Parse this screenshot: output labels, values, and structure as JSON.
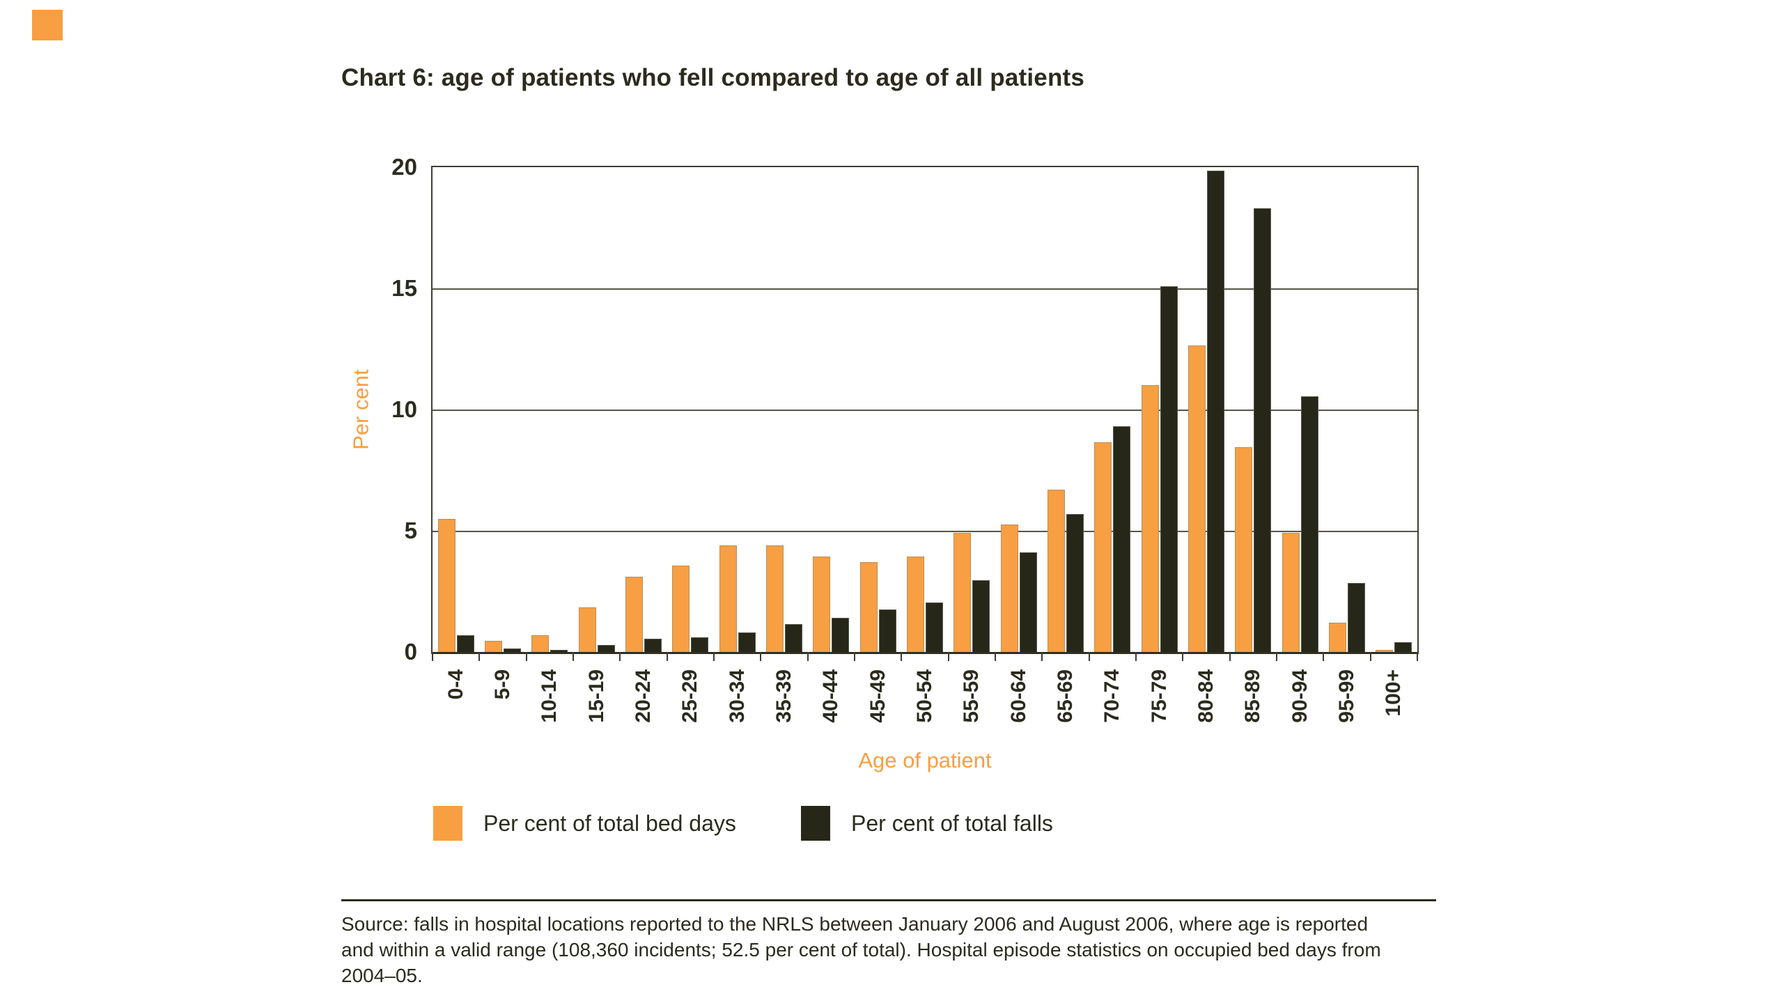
{
  "colors": {
    "orange": "#F79F42",
    "dark_olive": "#272719",
    "text": "#2B2B1E",
    "axis": "#3D3D30",
    "gridline": "#55554A"
  },
  "chart_data": {
    "type": "bar",
    "title": "Chart 6: age of patients who fell compared to age of all patients",
    "categories": [
      "0-4",
      "5-9",
      "10-14",
      "15-19",
      "20-24",
      "25-29",
      "30-34",
      "35-39",
      "40-44",
      "45-49",
      "50-54",
      "55-59",
      "60-64",
      "65-69",
      "70-74",
      "75-79",
      "80-84",
      "85-89",
      "90-94",
      "95-99",
      "100+"
    ],
    "series": [
      {
        "name": "Per cent of total bed days",
        "color": "#F79F42",
        "values": [
          5.5,
          0.45,
          0.7,
          1.85,
          3.1,
          3.55,
          4.4,
          4.4,
          3.95,
          3.7,
          3.95,
          4.9,
          5.25,
          6.7,
          8.65,
          11.0,
          12.65,
          8.45,
          4.9,
          1.2,
          0.1
        ]
      },
      {
        "name": "Per cent of total falls",
        "color": "#272719",
        "values": [
          0.7,
          0.15,
          0.1,
          0.3,
          0.55,
          0.6,
          0.8,
          1.15,
          1.4,
          1.75,
          2.05,
          2.95,
          4.1,
          5.7,
          9.3,
          15.1,
          19.85,
          18.3,
          10.55,
          2.85,
          0.4
        ]
      }
    ],
    "xlabel": "Age of patient",
    "ylabel": "Per cent",
    "ylim": [
      0,
      20
    ],
    "yticks": [
      0,
      5,
      10,
      15,
      20
    ],
    "grid": "horizontal",
    "legend_position": "bottom"
  },
  "source": {
    "lines": [
      "Source: falls in hospital locations reported to the NRLS between January 2006 and August 2006, where age is reported",
      "and within a valid range (108,360 incidents; 52.5 per cent of total). Hospital episode statistics on occupied bed days from",
      "2004–05."
    ]
  }
}
